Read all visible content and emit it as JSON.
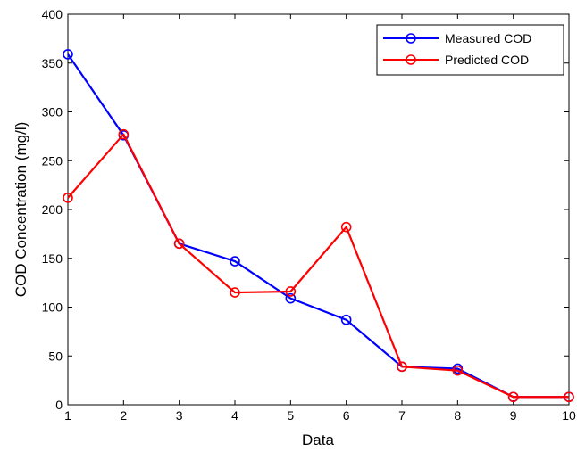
{
  "chart_data": {
    "type": "line",
    "title": "",
    "xlabel": "Data",
    "ylabel": "COD Concentration (mg/l)",
    "xlim": [
      1,
      10
    ],
    "ylim": [
      0,
      400
    ],
    "x": [
      1,
      2,
      3,
      4,
      5,
      6,
      7,
      8,
      9,
      10
    ],
    "xticks": [
      "1",
      "2",
      "3",
      "4",
      "5",
      "6",
      "7",
      "8",
      "9",
      "10"
    ],
    "yticks": [
      "0",
      "50",
      "100",
      "150",
      "200",
      "250",
      "300",
      "350",
      "400"
    ],
    "grid": false,
    "legend_position": "top-right",
    "series": [
      {
        "name": "Measured COD",
        "color": "#0000ff",
        "marker": "circle",
        "values": [
          359,
          276,
          165,
          147,
          109,
          87,
          39,
          37,
          8,
          8
        ]
      },
      {
        "name": "Predicted COD",
        "color": "#ff0000",
        "marker": "circle",
        "values": [
          212,
          277,
          165,
          115,
          116,
          182,
          39,
          35,
          8,
          8
        ]
      }
    ]
  }
}
